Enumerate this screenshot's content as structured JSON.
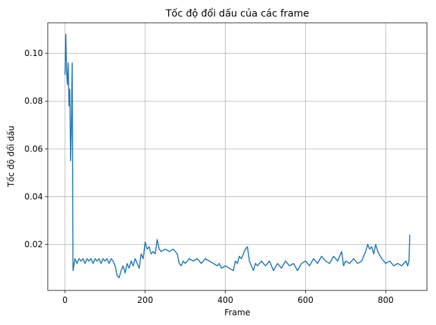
{
  "chart_data": {
    "type": "line",
    "title": "Tốc độ đổi dấu của các frame",
    "x_label": "Frame",
    "y_label": "Tốc độ đổi dấu",
    "x": [
      0,
      2,
      4,
      6,
      8,
      10,
      12,
      14,
      16,
      18,
      20,
      25,
      30,
      35,
      40,
      45,
      50,
      55,
      60,
      65,
      70,
      75,
      80,
      85,
      90,
      95,
      100,
      105,
      110,
      115,
      120,
      125,
      130,
      135,
      140,
      145,
      150,
      155,
      160,
      165,
      170,
      175,
      180,
      185,
      190,
      195,
      200,
      205,
      210,
      215,
      220,
      225,
      230,
      235,
      240,
      250,
      260,
      270,
      280,
      285,
      290,
      295,
      300,
      310,
      320,
      330,
      340,
      350,
      360,
      370,
      380,
      385,
      390,
      400,
      410,
      420,
      425,
      430,
      435,
      440,
      445,
      450,
      455,
      460,
      465,
      470,
      475,
      480,
      490,
      500,
      510,
      520,
      530,
      540,
      550,
      560,
      570,
      580,
      590,
      600,
      610,
      620,
      630,
      640,
      650,
      660,
      670,
      680,
      690,
      695,
      700,
      710,
      720,
      730,
      740,
      750,
      755,
      760,
      765,
      770,
      775,
      780,
      790,
      800,
      810,
      820,
      830,
      840,
      850,
      855,
      858,
      860
    ],
    "series": [
      {
        "name": "Tốc độ đổi dấu",
        "color": "#1f77b4",
        "values": [
          0.091,
          0.108,
          0.093,
          0.087,
          0.096,
          0.078,
          0.085,
          0.055,
          0.07,
          0.096,
          0.009,
          0.014,
          0.012,
          0.014,
          0.013,
          0.014,
          0.012,
          0.014,
          0.013,
          0.014,
          0.012,
          0.014,
          0.013,
          0.014,
          0.012,
          0.014,
          0.013,
          0.014,
          0.012,
          0.014,
          0.013,
          0.011,
          0.007,
          0.006,
          0.009,
          0.011,
          0.008,
          0.012,
          0.01,
          0.013,
          0.011,
          0.014,
          0.012,
          0.01,
          0.016,
          0.014,
          0.021,
          0.018,
          0.019,
          0.016,
          0.017,
          0.016,
          0.022,
          0.018,
          0.017,
          0.018,
          0.017,
          0.018,
          0.016,
          0.012,
          0.011,
          0.013,
          0.012,
          0.014,
          0.013,
          0.014,
          0.012,
          0.014,
          0.013,
          0.012,
          0.011,
          0.012,
          0.01,
          0.011,
          0.01,
          0.009,
          0.013,
          0.012,
          0.015,
          0.014,
          0.016,
          0.018,
          0.019,
          0.013,
          0.011,
          0.009,
          0.012,
          0.011,
          0.013,
          0.011,
          0.013,
          0.009,
          0.012,
          0.01,
          0.013,
          0.011,
          0.012,
          0.009,
          0.012,
          0.013,
          0.011,
          0.014,
          0.012,
          0.015,
          0.013,
          0.012,
          0.015,
          0.013,
          0.017,
          0.011,
          0.013,
          0.012,
          0.014,
          0.012,
          0.013,
          0.017,
          0.02,
          0.018,
          0.019,
          0.016,
          0.02,
          0.017,
          0.014,
          0.012,
          0.013,
          0.011,
          0.012,
          0.011,
          0.013,
          0.011,
          0.013,
          0.024
        ]
      }
    ],
    "xlim": [
      -43,
      903
    ],
    "ylim": [
      0.0007,
      0.1128
    ],
    "xticks": [
      0,
      200,
      400,
      600,
      800
    ],
    "yticks": [
      0.02,
      0.04,
      0.06,
      0.08,
      {
        "value": 0.1,
        "label": "0.10"
      }
    ],
    "grid": true
  }
}
